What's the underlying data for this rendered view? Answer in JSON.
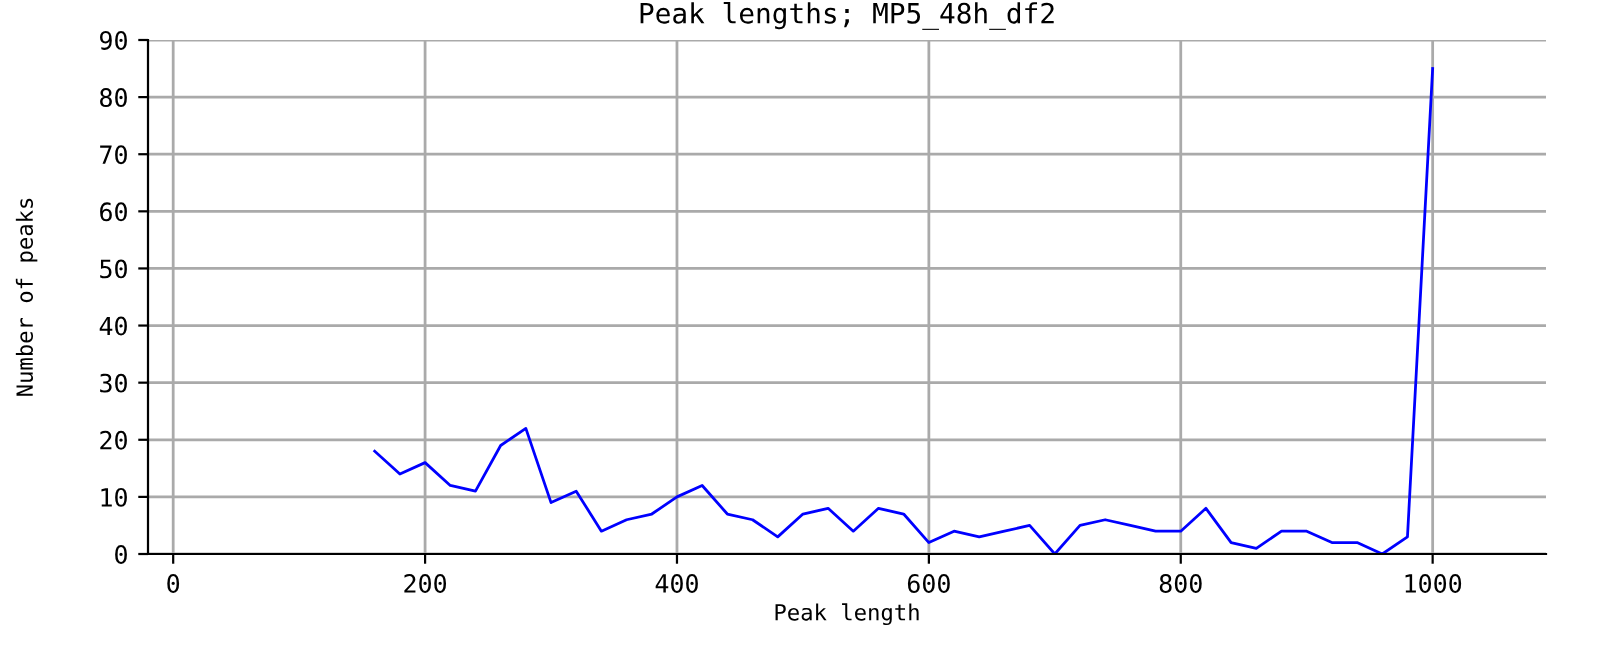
{
  "chart_data": {
    "type": "line",
    "title": "Peak lengths; MP5_48h_df2",
    "xlabel": "Peak length",
    "ylabel": "Number of peaks",
    "x": [
      160,
      180,
      200,
      220,
      240,
      260,
      280,
      300,
      320,
      340,
      360,
      380,
      400,
      420,
      440,
      460,
      480,
      500,
      520,
      540,
      560,
      580,
      600,
      620,
      640,
      660,
      680,
      700,
      720,
      740,
      760,
      780,
      800,
      820,
      840,
      860,
      880,
      900,
      920,
      940,
      960,
      980,
      1000
    ],
    "series": [
      {
        "color": "#0000ff",
        "values": [
          18,
          14,
          16,
          12,
          11,
          19,
          22,
          9,
          11,
          4,
          6,
          7,
          10,
          12,
          7,
          6,
          3,
          7,
          8,
          4,
          8,
          7,
          2,
          4,
          3,
          4,
          5,
          0,
          5,
          6,
          5,
          4,
          4,
          8,
          2,
          1,
          4,
          4,
          2,
          2,
          0,
          3,
          85
        ]
      }
    ],
    "xlim": [
      -20,
      1090
    ],
    "ylim": [
      0,
      90
    ],
    "xticks": [
      0,
      200,
      400,
      600,
      800,
      1000
    ],
    "yticks": [
      0,
      10,
      20,
      30,
      40,
      50,
      60,
      70,
      80,
      90
    ],
    "grid": true,
    "marker": "none",
    "line_style": "solid"
  }
}
